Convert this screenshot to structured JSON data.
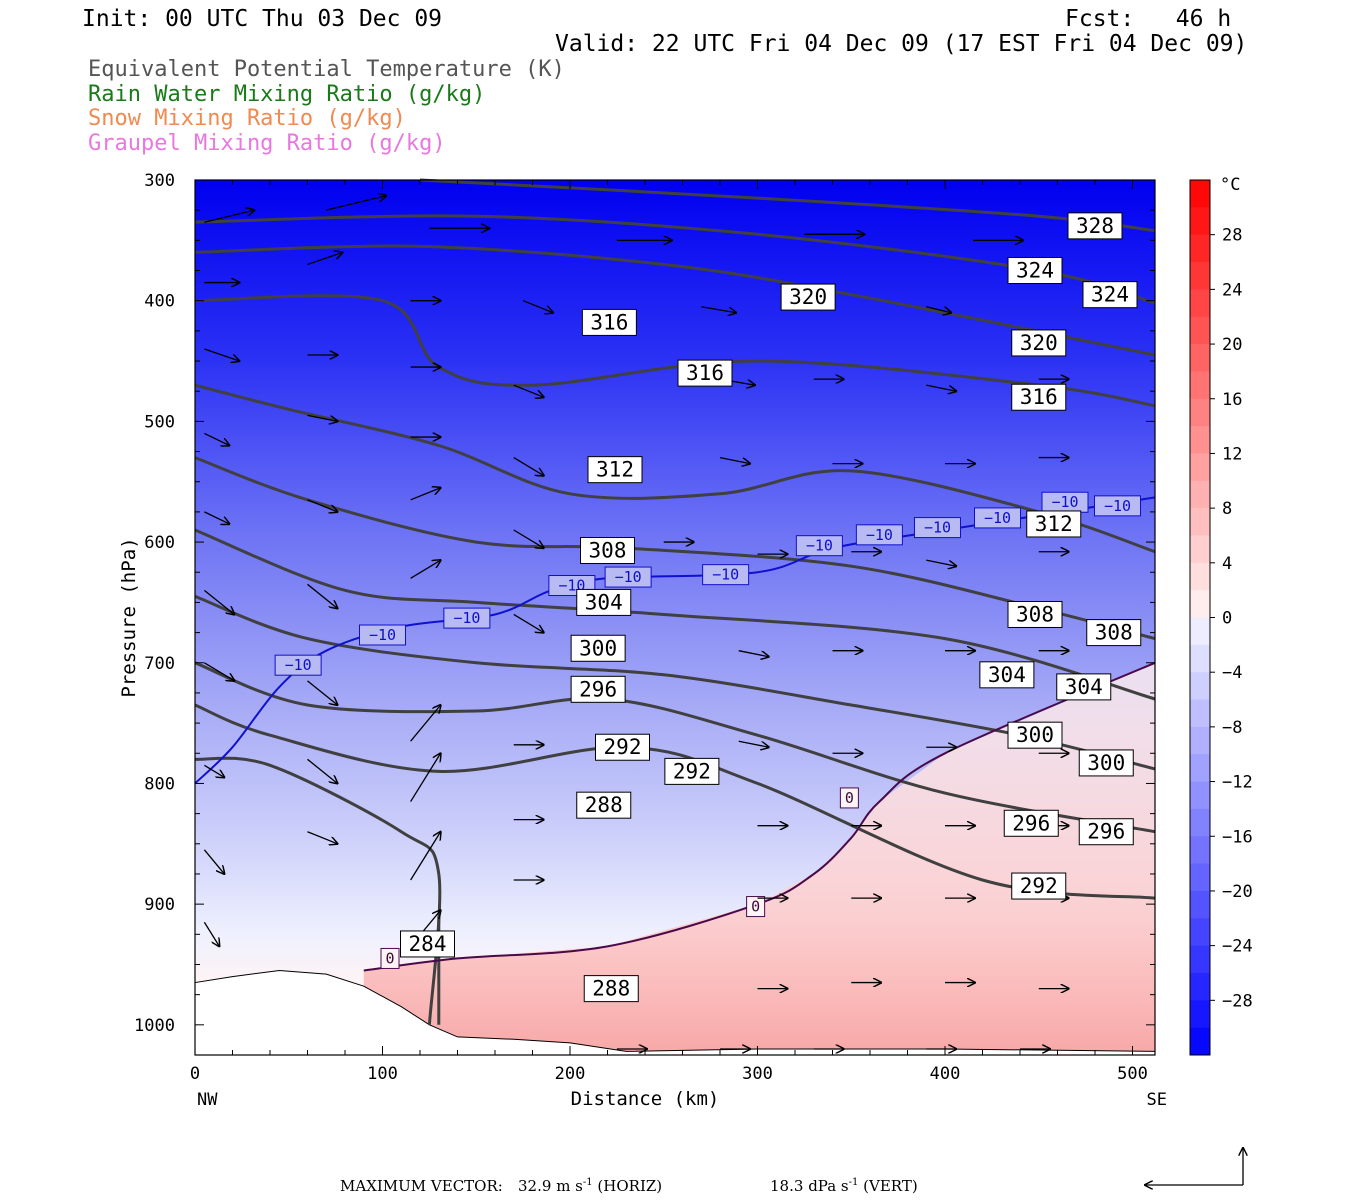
{
  "header": {
    "init": "Init: 00 UTC Thu 03 Dec 09",
    "fcst": "Fcst:   46 h",
    "valid": "Valid: 22 UTC Fri 04 Dec 09 (17 EST Fri 04 Dec 09)"
  },
  "legend": [
    {
      "label": "Equivalent Potential Temperature (K)",
      "color": "#555555"
    },
    {
      "label": "Rain Water Mixing Ratio (g/kg)",
      "color": "#1a7a1a"
    },
    {
      "label": "Snow Mixing Ratio (g/kg)",
      "color": "#f08a50"
    },
    {
      "label": "Graupel Mixing Ratio (g/kg)",
      "color": "#e878e0"
    }
  ],
  "footer": {
    "max_vector_label": "MAXIMUM VECTOR:",
    "horiz_value": "32.9",
    "horiz_unit": "m s",
    "horiz_exp": "-1",
    "horiz_tag": "(HORIZ)",
    "vert_value": "18.3",
    "vert_unit": "dPa s",
    "vert_exp": "-1",
    "vert_tag": "(VERT)"
  },
  "chart_data": {
    "type": "heatmap",
    "title": "",
    "xlabel": "Distance (km)",
    "ylabel": "Pressure (hPa)",
    "xlim": [
      0,
      512
    ],
    "ylim": [
      1025,
      300
    ],
    "x_ticks": [
      0,
      100,
      200,
      300,
      400,
      500
    ],
    "y_ticks": [
      300,
      400,
      500,
      600,
      700,
      800,
      900,
      1000
    ],
    "x_end_labels": {
      "left": "NW",
      "right": "SE"
    },
    "colorbar": {
      "unit": "°C",
      "ticks": [
        28,
        24,
        20,
        16,
        12,
        8,
        4,
        0,
        -4,
        -8,
        -12,
        -16,
        -20,
        -24,
        -28
      ],
      "range": [
        -32,
        32
      ],
      "negative_color": "#0000f0",
      "positive_color": "#ff2020"
    },
    "temperature_field": {
      "description_units": "°C",
      "surface_left": -2,
      "surface_right": 7,
      "top_value": -32
    },
    "theta_e_contours": [
      {
        "value": 328,
        "points": [
          [
            120,
            300
          ],
          [
            300,
            315
          ],
          [
            450,
            330
          ],
          [
            512,
            342
          ]
        ]
      },
      {
        "value": 324,
        "points": [
          [
            0,
            335
          ],
          [
            150,
            330
          ],
          [
            300,
            345
          ],
          [
            450,
            375
          ],
          [
            512,
            402
          ]
        ]
      },
      {
        "value": 320,
        "points": [
          [
            0,
            360
          ],
          [
            120,
            355
          ],
          [
            250,
            370
          ],
          [
            350,
            395
          ],
          [
            512,
            445
          ]
        ]
      },
      {
        "value": 316,
        "points": [
          [
            0,
            400
          ],
          [
            100,
            400
          ],
          [
            130,
            455
          ],
          [
            180,
            470
          ],
          [
            300,
            450
          ],
          [
            450,
            470
          ],
          [
            512,
            487
          ]
        ]
      },
      {
        "value": 312,
        "points": [
          [
            0,
            470
          ],
          [
            50,
            490
          ],
          [
            130,
            520
          ],
          [
            200,
            560
          ],
          [
            280,
            560
          ],
          [
            350,
            541
          ],
          [
            450,
            575
          ],
          [
            512,
            608
          ]
        ]
      },
      {
        "value": 308,
        "points": [
          [
            0,
            530
          ],
          [
            60,
            565
          ],
          [
            150,
            600
          ],
          [
            230,
            605
          ],
          [
            350,
            620
          ],
          [
            450,
            655
          ],
          [
            512,
            680
          ]
        ]
      },
      {
        "value": 304,
        "points": [
          [
            0,
            590
          ],
          [
            80,
            640
          ],
          [
            150,
            650
          ],
          [
            250,
            660
          ],
          [
            400,
            680
          ],
          [
            512,
            730
          ]
        ]
      },
      {
        "value": 300,
        "points": [
          [
            0,
            645
          ],
          [
            60,
            680
          ],
          [
            150,
            700
          ],
          [
            250,
            710
          ],
          [
            350,
            735
          ],
          [
            440,
            760
          ],
          [
            512,
            788
          ]
        ]
      },
      {
        "value": 296,
        "points": [
          [
            0,
            700
          ],
          [
            60,
            735
          ],
          [
            150,
            740
          ],
          [
            220,
            730
          ],
          [
            300,
            760
          ],
          [
            400,
            808
          ],
          [
            512,
            840
          ]
        ]
      },
      {
        "value": 292,
        "points": [
          [
            0,
            735
          ],
          [
            40,
            760
          ],
          [
            130,
            790
          ],
          [
            230,
            770
          ],
          [
            300,
            800
          ],
          [
            420,
            880
          ],
          [
            512,
            895
          ]
        ]
      },
      {
        "value": 288,
        "points": [
          [
            0,
            780
          ],
          [
            40,
            785
          ],
          [
            110,
            840
          ],
          [
            130,
            875
          ],
          [
            125,
            1000
          ]
        ]
      },
      {
        "value": 284,
        "points": [
          [
            130,
            1000
          ],
          [
            130,
            910
          ]
        ]
      }
    ],
    "contour_labels": [
      {
        "value": "328",
        "x": 480,
        "p": 338
      },
      {
        "value": "324",
        "x": 448,
        "p": 375
      },
      {
        "value": "324",
        "x": 488,
        "p": 395
      },
      {
        "value": "320",
        "x": 327,
        "p": 397
      },
      {
        "value": "320",
        "x": 450,
        "p": 435
      },
      {
        "value": "316",
        "x": 221,
        "p": 418
      },
      {
        "value": "316",
        "x": 272,
        "p": 460
      },
      {
        "value": "316",
        "x": 450,
        "p": 480
      },
      {
        "value": "312",
        "x": 224,
        "p": 540
      },
      {
        "value": "312",
        "x": 458,
        "p": 585
      },
      {
        "value": "308",
        "x": 220,
        "p": 607
      },
      {
        "value": "308",
        "x": 448,
        "p": 660
      },
      {
        "value": "308",
        "x": 490,
        "p": 675
      },
      {
        "value": "304",
        "x": 218,
        "p": 650
      },
      {
        "value": "304",
        "x": 433,
        "p": 710
      },
      {
        "value": "304",
        "x": 474,
        "p": 720
      },
      {
        "value": "300",
        "x": 215,
        "p": 688
      },
      {
        "value": "300",
        "x": 448,
        "p": 760
      },
      {
        "value": "300",
        "x": 486,
        "p": 783
      },
      {
        "value": "296",
        "x": 215,
        "p": 722
      },
      {
        "value": "296",
        "x": 446,
        "p": 833
      },
      {
        "value": "296",
        "x": 486,
        "p": 840
      },
      {
        "value": "292",
        "x": 228,
        "p": 770
      },
      {
        "value": "292",
        "x": 265,
        "p": 790
      },
      {
        "value": "292",
        "x": 450,
        "p": 885
      },
      {
        "value": "288",
        "x": 218,
        "p": 818
      },
      {
        "value": "288",
        "x": 222,
        "p": 970
      },
      {
        "value": "284",
        "x": 124,
        "p": 933
      }
    ],
    "isotherm_minus10": {
      "value": -10,
      "points": [
        [
          0,
          800
        ],
        [
          20,
          770
        ],
        [
          45,
          720
        ],
        [
          70,
          690
        ],
        [
          110,
          670
        ],
        [
          160,
          660
        ],
        [
          190,
          640
        ],
        [
          220,
          630
        ],
        [
          300,
          625
        ],
        [
          340,
          605
        ],
        [
          400,
          590
        ],
        [
          512,
          563
        ]
      ],
      "labels": [
        [
          55,
          702
        ],
        [
          100,
          677
        ],
        [
          145,
          663
        ],
        [
          201,
          636
        ],
        [
          231,
          629
        ],
        [
          283,
          627
        ],
        [
          333,
          603
        ],
        [
          365,
          594
        ],
        [
          396,
          588
        ],
        [
          428,
          580
        ],
        [
          464,
          567
        ],
        [
          492,
          570
        ]
      ]
    },
    "isotherm_zero": {
      "value": 0,
      "points": [
        [
          90,
          955
        ],
        [
          140,
          945
        ],
        [
          220,
          935
        ],
        [
          300,
          900
        ],
        [
          330,
          875
        ],
        [
          350,
          845
        ],
        [
          365,
          815
        ],
        [
          400,
          775
        ],
        [
          512,
          700
        ]
      ],
      "labels": [
        [
          104,
          945
        ],
        [
          299,
          902
        ],
        [
          349,
          812
        ]
      ]
    },
    "wind_vectors": [
      {
        "x": 5,
        "p": 335,
        "dx": 50,
        "dp": -10
      },
      {
        "x": 70,
        "p": 325,
        "dx": 60,
        "dp": -12
      },
      {
        "x": 125,
        "p": 340,
        "dx": 60,
        "dp": 0
      },
      {
        "x": 225,
        "p": 350,
        "dx": 55,
        "dp": 0
      },
      {
        "x": 325,
        "p": 345,
        "dx": 60,
        "dp": 0
      },
      {
        "x": 415,
        "p": 350,
        "dx": 50,
        "dp": 0
      },
      {
        "x": 5,
        "p": 385,
        "dx": 35,
        "dp": 0
      },
      {
        "x": 60,
        "p": 370,
        "dx": 35,
        "dp": -10
      },
      {
        "x": 115,
        "p": 400,
        "dx": 30,
        "dp": 0
      },
      {
        "x": 175,
        "p": 400,
        "dx": 30,
        "dp": 10
      },
      {
        "x": 270,
        "p": 405,
        "dx": 35,
        "dp": 5
      },
      {
        "x": 5,
        "p": 440,
        "dx": 35,
        "dp": 10
      },
      {
        "x": 60,
        "p": 445,
        "dx": 30,
        "dp": 0
      },
      {
        "x": 115,
        "p": 455,
        "dx": 30,
        "dp": 0
      },
      {
        "x": 170,
        "p": 470,
        "dx": 30,
        "dp": 10
      },
      {
        "x": 280,
        "p": 465,
        "dx": 35,
        "dp": 5
      },
      {
        "x": 5,
        "p": 510,
        "dx": 25,
        "dp": 10
      },
      {
        "x": 60,
        "p": 495,
        "dx": 30,
        "dp": 5
      },
      {
        "x": 115,
        "p": 513,
        "dx": 30,
        "dp": 0
      },
      {
        "x": 170,
        "p": 530,
        "dx": 30,
        "dp": 15
      },
      {
        "x": 280,
        "p": 530,
        "dx": 30,
        "dp": 5
      },
      {
        "x": 5,
        "p": 575,
        "dx": 25,
        "dp": 10
      },
      {
        "x": 60,
        "p": 565,
        "dx": 30,
        "dp": 10
      },
      {
        "x": 115,
        "p": 565,
        "dx": 30,
        "dp": -10
      },
      {
        "x": 170,
        "p": 590,
        "dx": 30,
        "dp": 15
      },
      {
        "x": 5,
        "p": 640,
        "dx": 30,
        "dp": 20
      },
      {
        "x": 60,
        "p": 635,
        "dx": 30,
        "dp": 20
      },
      {
        "x": 115,
        "p": 630,
        "dx": 30,
        "dp": -15
      },
      {
        "x": 170,
        "p": 660,
        "dx": 30,
        "dp": 15
      },
      {
        "x": 5,
        "p": 700,
        "dx": 30,
        "dp": 15
      },
      {
        "x": 60,
        "p": 715,
        "dx": 30,
        "dp": 20
      },
      {
        "x": 115,
        "p": 765,
        "dx": 30,
        "dp": -30
      },
      {
        "x": 170,
        "p": 768,
        "dx": 30,
        "dp": 0
      },
      {
        "x": 5,
        "p": 785,
        "dx": 20,
        "dp": 10
      },
      {
        "x": 60,
        "p": 780,
        "dx": 30,
        "dp": 20
      },
      {
        "x": 115,
        "p": 815,
        "dx": 30,
        "dp": -40
      },
      {
        "x": 170,
        "p": 830,
        "dx": 30,
        "dp": 0
      },
      {
        "x": 5,
        "p": 855,
        "dx": 20,
        "dp": 20
      },
      {
        "x": 60,
        "p": 840,
        "dx": 30,
        "dp": 10
      },
      {
        "x": 115,
        "p": 880,
        "dx": 30,
        "dp": -40
      },
      {
        "x": 170,
        "p": 880,
        "dx": 30,
        "dp": 0
      },
      {
        "x": 5,
        "p": 915,
        "dx": 15,
        "dp": 20
      },
      {
        "x": 115,
        "p": 935,
        "dx": 30,
        "dp": -30
      },
      {
        "x": 225,
        "p": 1020,
        "dx": 30,
        "dp": 0
      },
      {
        "x": 280,
        "p": 1020,
        "dx": 30,
        "dp": 0
      },
      {
        "x": 330,
        "p": 1020,
        "dx": 30,
        "dp": 0
      },
      {
        "x": 390,
        "p": 1020,
        "dx": 30,
        "dp": 0
      },
      {
        "x": 440,
        "p": 1020,
        "dx": 30,
        "dp": 0
      },
      {
        "x": 300,
        "p": 970,
        "dx": 30,
        "dp": 0
      },
      {
        "x": 350,
        "p": 965,
        "dx": 30,
        "dp": 0
      },
      {
        "x": 400,
        "p": 965,
        "dx": 30,
        "dp": 0
      },
      {
        "x": 450,
        "p": 970,
        "dx": 30,
        "dp": 0
      },
      {
        "x": 300,
        "p": 895,
        "dx": 30,
        "dp": 0
      },
      {
        "x": 350,
        "p": 895,
        "dx": 30,
        "dp": 0
      },
      {
        "x": 400,
        "p": 895,
        "dx": 30,
        "dp": 0
      },
      {
        "x": 450,
        "p": 895,
        "dx": 30,
        "dp": 0
      },
      {
        "x": 300,
        "p": 835,
        "dx": 30,
        "dp": 0
      },
      {
        "x": 350,
        "p": 835,
        "dx": 30,
        "dp": 0
      },
      {
        "x": 400,
        "p": 835,
        "dx": 30,
        "dp": 0
      },
      {
        "x": 450,
        "p": 835,
        "dx": 30,
        "dp": 0
      },
      {
        "x": 290,
        "p": 765,
        "dx": 30,
        "dp": 5
      },
      {
        "x": 340,
        "p": 775,
        "dx": 30,
        "dp": 0
      },
      {
        "x": 390,
        "p": 770,
        "dx": 30,
        "dp": 0
      },
      {
        "x": 450,
        "p": 775,
        "dx": 30,
        "dp": 0
      },
      {
        "x": 290,
        "p": 690,
        "dx": 30,
        "dp": 5
      },
      {
        "x": 340,
        "p": 690,
        "dx": 30,
        "dp": 0
      },
      {
        "x": 400,
        "p": 690,
        "dx": 30,
        "dp": 0
      },
      {
        "x": 450,
        "p": 690,
        "dx": 30,
        "dp": 0
      },
      {
        "x": 390,
        "p": 615,
        "dx": 30,
        "dp": 5
      },
      {
        "x": 450,
        "p": 608,
        "dx": 30,
        "dp": 0
      },
      {
        "x": 350,
        "p": 608,
        "dx": 30,
        "dp": 0
      },
      {
        "x": 300,
        "p": 610,
        "dx": 30,
        "dp": 0
      },
      {
        "x": 250,
        "p": 600,
        "dx": 30,
        "dp": 0
      },
      {
        "x": 340,
        "p": 535,
        "dx": 30,
        "dp": 0
      },
      {
        "x": 400,
        "p": 535,
        "dx": 30,
        "dp": 0
      },
      {
        "x": 450,
        "p": 530,
        "dx": 30,
        "dp": 0
      },
      {
        "x": 330,
        "p": 465,
        "dx": 30,
        "dp": 0
      },
      {
        "x": 390,
        "p": 470,
        "dx": 30,
        "dp": 5
      },
      {
        "x": 450,
        "p": 465,
        "dx": 30,
        "dp": 0
      },
      {
        "x": 390,
        "p": 405,
        "dx": 25,
        "dp": 5
      }
    ],
    "vector_key": {
      "horiz": 32.9,
      "vert": 18.3
    }
  }
}
